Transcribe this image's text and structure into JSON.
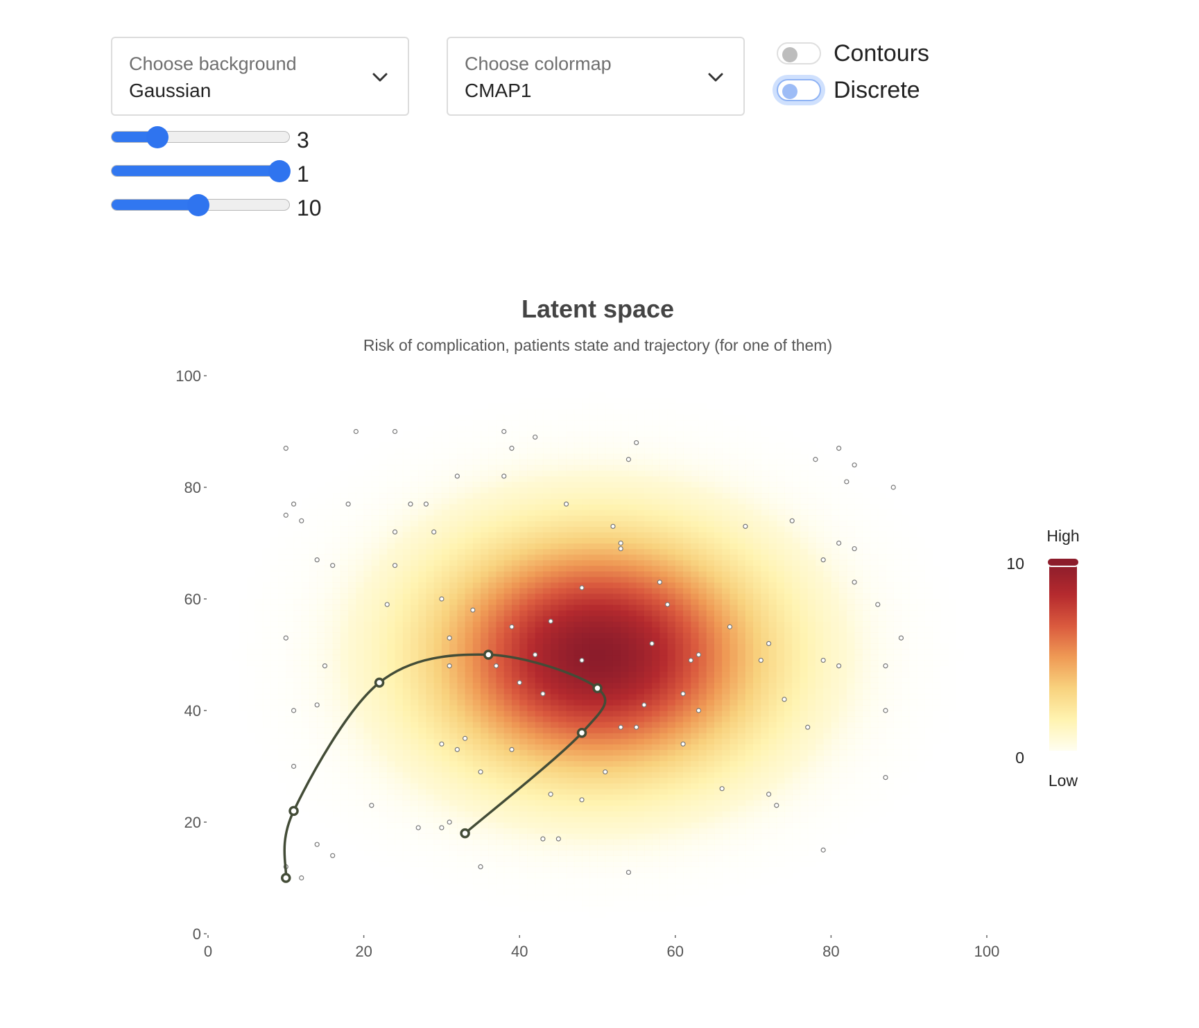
{
  "controls": {
    "background_select": {
      "label": "Choose background",
      "value": "Gaussian"
    },
    "colormap_select": {
      "label": "Choose colormap",
      "value": "CMAP1"
    },
    "toggles": [
      {
        "label": "Contours",
        "checked": false
      },
      {
        "label": "Discrete",
        "checked": false,
        "focused": true
      }
    ],
    "sliders": [
      {
        "value": "3",
        "fraction": 0.26
      },
      {
        "value": "1",
        "fraction": 0.94
      },
      {
        "value": "10",
        "fraction": 0.49
      }
    ],
    "accent_color": "#2f74ef"
  },
  "chart_data": {
    "type": "heatmap",
    "title": "Latent space",
    "subtitle": "Risk of complication, patients state and trajectory (for one of them)",
    "xlabel": "",
    "ylabel": "",
    "xlim": [
      0,
      100
    ],
    "ylim": [
      0,
      100
    ],
    "x_ticks": [
      0,
      20,
      40,
      60,
      80,
      100
    ],
    "y_ticks": [
      0,
      20,
      40,
      60,
      80,
      100
    ],
    "grid": false,
    "background": {
      "function": "gaussian",
      "center": [
        50,
        50
      ],
      "sigma": 14,
      "peak": 10,
      "resolution": 100
    },
    "colorbar": {
      "min": 0,
      "max": 10,
      "min_label": "0",
      "max_label": "10",
      "low_text": "Low",
      "high_text": "High",
      "colors": [
        "#fffef0",
        "#fff3b0",
        "#f8d27e",
        "#ef9a55",
        "#da5a3e",
        "#b52a2e",
        "#8c1c2b"
      ]
    },
    "patients": [
      [
        10,
        87
      ],
      [
        19,
        90
      ],
      [
        24,
        90
      ],
      [
        38,
        90
      ],
      [
        39,
        87
      ],
      [
        42,
        89
      ],
      [
        55,
        88
      ],
      [
        54,
        85
      ],
      [
        32,
        82
      ],
      [
        38,
        82
      ],
      [
        81,
        87
      ],
      [
        78,
        85
      ],
      [
        83,
        84
      ],
      [
        82,
        81
      ],
      [
        88,
        80
      ],
      [
        10,
        75
      ],
      [
        11,
        77
      ],
      [
        12,
        74
      ],
      [
        18,
        77
      ],
      [
        26,
        77
      ],
      [
        28,
        77
      ],
      [
        24,
        72
      ],
      [
        29,
        72
      ],
      [
        46,
        77
      ],
      [
        52,
        73
      ],
      [
        53,
        70
      ],
      [
        53,
        69
      ],
      [
        69,
        73
      ],
      [
        75,
        74
      ],
      [
        81,
        70
      ],
      [
        83,
        69
      ],
      [
        14,
        67
      ],
      [
        16,
        66
      ],
      [
        24,
        66
      ],
      [
        58,
        63
      ],
      [
        48,
        62
      ],
      [
        79,
        67
      ],
      [
        83,
        63
      ],
      [
        23,
        59
      ],
      [
        30,
        60
      ],
      [
        34,
        58
      ],
      [
        59,
        59
      ],
      [
        86,
        59
      ],
      [
        10,
        53
      ],
      [
        31,
        53
      ],
      [
        39,
        55
      ],
      [
        44,
        56
      ],
      [
        67,
        55
      ],
      [
        72,
        52
      ],
      [
        89,
        53
      ],
      [
        57,
        52
      ],
      [
        15,
        48
      ],
      [
        31,
        48
      ],
      [
        37,
        48
      ],
      [
        42,
        50
      ],
      [
        48,
        49
      ],
      [
        62,
        49
      ],
      [
        63,
        50
      ],
      [
        71,
        49
      ],
      [
        79,
        49
      ],
      [
        81,
        48
      ],
      [
        87,
        48
      ],
      [
        40,
        45
      ],
      [
        43,
        43
      ],
      [
        61,
        43
      ],
      [
        56,
        41
      ],
      [
        63,
        40
      ],
      [
        74,
        42
      ],
      [
        11,
        40
      ],
      [
        14,
        41
      ],
      [
        87,
        40
      ],
      [
        53,
        37
      ],
      [
        55,
        37
      ],
      [
        77,
        37
      ],
      [
        30,
        34
      ],
      [
        32,
        33
      ],
      [
        33,
        35
      ],
      [
        39,
        33
      ],
      [
        61,
        34
      ],
      [
        11,
        30
      ],
      [
        35,
        29
      ],
      [
        51,
        29
      ],
      [
        66,
        26
      ],
      [
        72,
        25
      ],
      [
        73,
        23
      ],
      [
        87,
        28
      ],
      [
        21,
        23
      ],
      [
        44,
        25
      ],
      [
        48,
        24
      ],
      [
        27,
        19
      ],
      [
        30,
        19
      ],
      [
        31,
        20
      ],
      [
        43,
        17
      ],
      [
        45,
        17
      ],
      [
        14,
        16
      ],
      [
        16,
        14
      ],
      [
        35,
        12
      ],
      [
        54,
        11
      ],
      [
        79,
        15
      ],
      [
        10,
        12
      ],
      [
        12,
        10
      ]
    ],
    "trajectory": {
      "color": "#434c37",
      "points": [
        [
          10,
          10
        ],
        [
          11,
          22
        ],
        [
          22,
          45
        ],
        [
          36,
          50
        ],
        [
          50,
          44
        ],
        [
          48,
          36
        ],
        [
          33,
          18
        ]
      ]
    }
  }
}
